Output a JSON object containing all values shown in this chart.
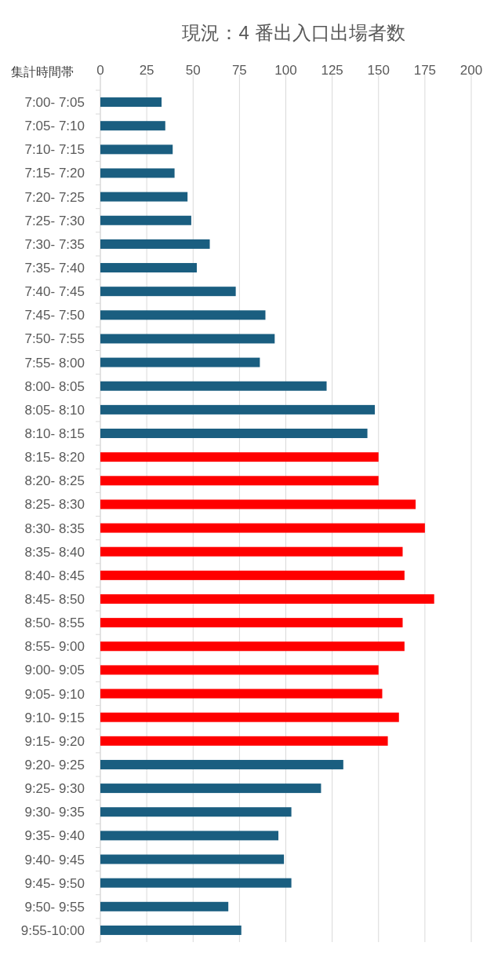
{
  "chart_data": {
    "type": "bar",
    "orientation": "horizontal",
    "title": "現況：4 番出入口出場者数",
    "ylabel": "集計時間帯",
    "categories": [
      "7:00- 7:05",
      "7:05- 7:10",
      "7:10- 7:15",
      "7:15- 7:20",
      "7:20- 7:25",
      "7:25- 7:30",
      "7:30- 7:35",
      "7:35- 7:40",
      "7:40- 7:45",
      "7:45- 7:50",
      "7:50- 7:55",
      "7:55- 8:00",
      "8:00- 8:05",
      "8:05- 8:10",
      "8:10- 8:15",
      "8:15- 8:20",
      "8:20- 8:25",
      "8:25- 8:30",
      "8:30- 8:35",
      "8:35- 8:40",
      "8:40- 8:45",
      "8:45- 8:50",
      "8:50- 8:55",
      "8:55- 9:00",
      "9:00- 9:05",
      "9:05- 9:10",
      "9:10- 9:15",
      "9:15- 9:20",
      "9:20- 9:25",
      "9:25- 9:30",
      "9:30- 9:35",
      "9:35- 9:40",
      "9:40- 9:45",
      "9:45- 9:50",
      "9:50- 9:55",
      "9:55-10:00"
    ],
    "values": [
      33,
      35,
      39,
      40,
      47,
      49,
      59,
      52,
      73,
      89,
      94,
      86,
      122,
      148,
      144,
      150,
      150,
      170,
      175,
      163,
      164,
      180,
      163,
      164,
      150,
      152,
      161,
      155,
      131,
      119,
      103,
      96,
      99,
      103,
      69,
      76
    ],
    "colors": [
      "#1a5e80",
      "#1a5e80",
      "#1a5e80",
      "#1a5e80",
      "#1a5e80",
      "#1a5e80",
      "#1a5e80",
      "#1a5e80",
      "#1a5e80",
      "#1a5e80",
      "#1a5e80",
      "#1a5e80",
      "#1a5e80",
      "#1a5e80",
      "#1a5e80",
      "#ff0000",
      "#ff0000",
      "#ff0000",
      "#ff0000",
      "#ff0000",
      "#ff0000",
      "#ff0000",
      "#ff0000",
      "#ff0000",
      "#ff0000",
      "#ff0000",
      "#ff0000",
      "#ff0000",
      "#1a5e80",
      "#1a5e80",
      "#1a5e80",
      "#1a5e80",
      "#1a5e80",
      "#1a5e80",
      "#1a5e80",
      "#1a5e80"
    ],
    "xlim": [
      0,
      200
    ],
    "xticks": [
      0,
      25,
      50,
      75,
      100,
      125,
      150,
      175,
      200
    ],
    "grid": "x"
  }
}
